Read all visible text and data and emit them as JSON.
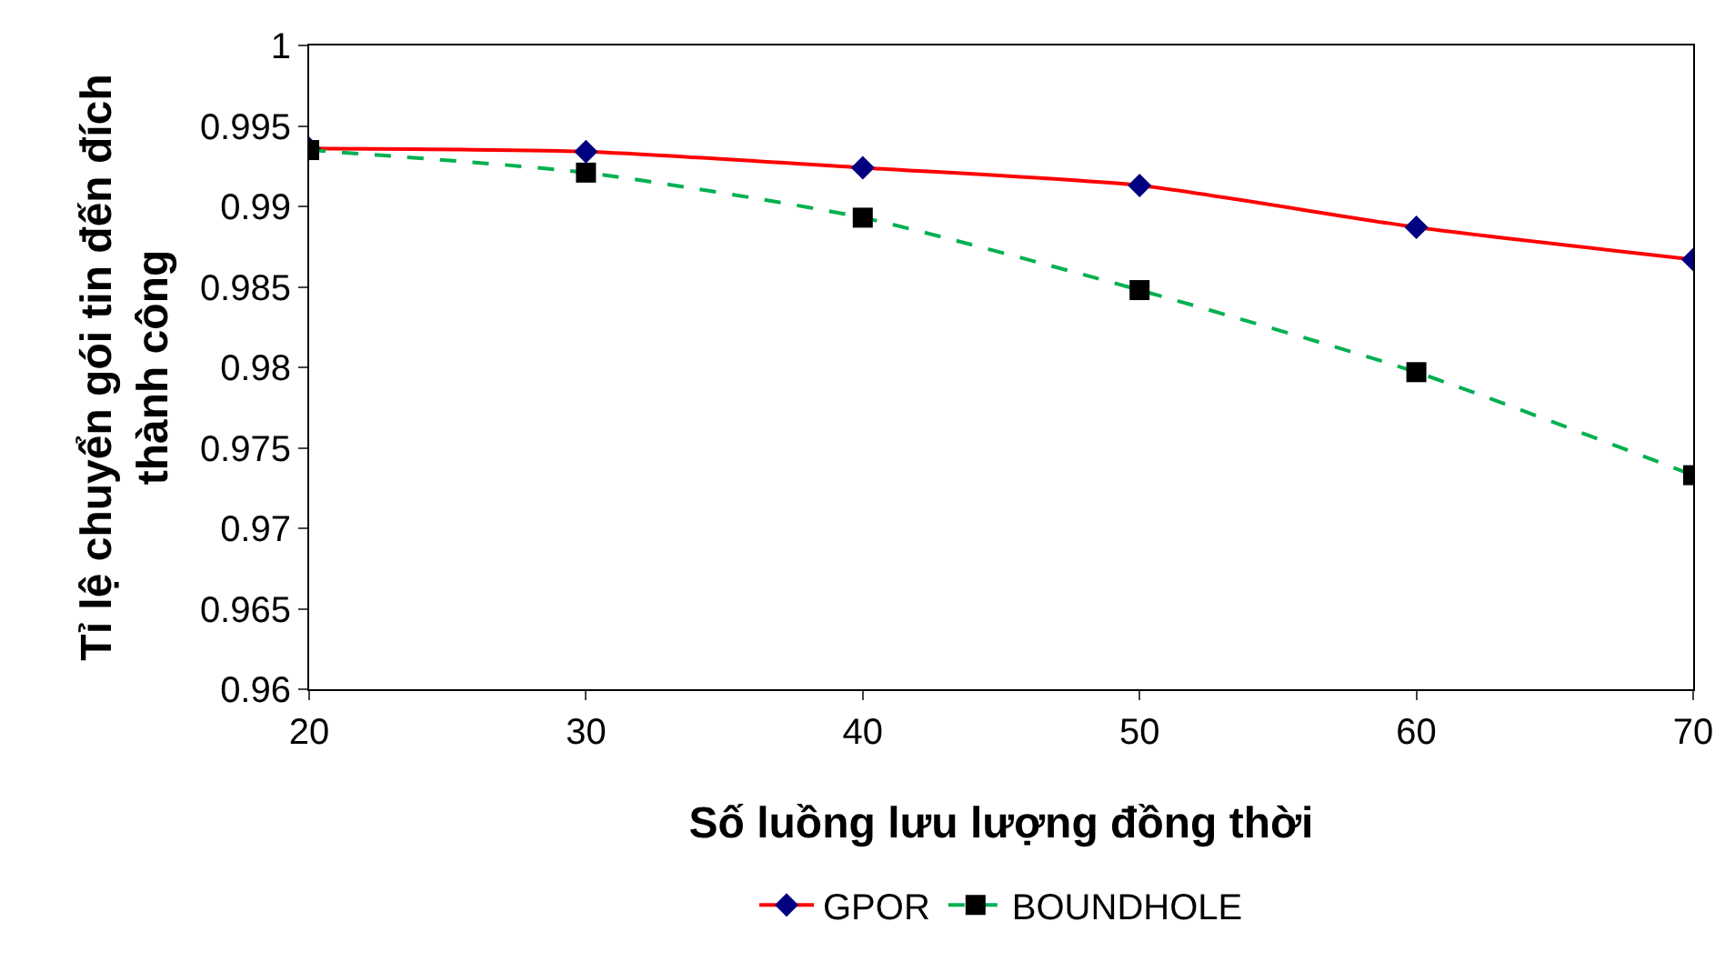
{
  "chart_data": {
    "type": "line",
    "xlabel": "Số luồng lưu lượng đồng thời",
    "ylabel": "Tỉ lệ chuyển gói tin đến đích\nthành công",
    "x": [
      20,
      30,
      40,
      50,
      60,
      70
    ],
    "series": [
      {
        "name": "GPOR",
        "color": "#ff0000",
        "marker": "diamond",
        "line_style": "solid",
        "values": [
          0.9936,
          0.9934,
          0.9924,
          0.9913,
          0.9887,
          0.9867
        ]
      },
      {
        "name": "BOUNDHOLE",
        "color": "#00b050",
        "marker": "square",
        "line_style": "dashed",
        "values": [
          0.9935,
          0.9921,
          0.9893,
          0.9848,
          0.9797,
          0.9733
        ]
      }
    ],
    "xlim": [
      20,
      70
    ],
    "xticks": [
      20,
      30,
      40,
      50,
      60,
      70
    ],
    "ylim": [
      0.96,
      1
    ],
    "yticks": [
      0.96,
      0.965,
      0.97,
      0.975,
      0.98,
      0.985,
      0.99,
      0.995,
      1
    ],
    "legend": "bottom"
  }
}
